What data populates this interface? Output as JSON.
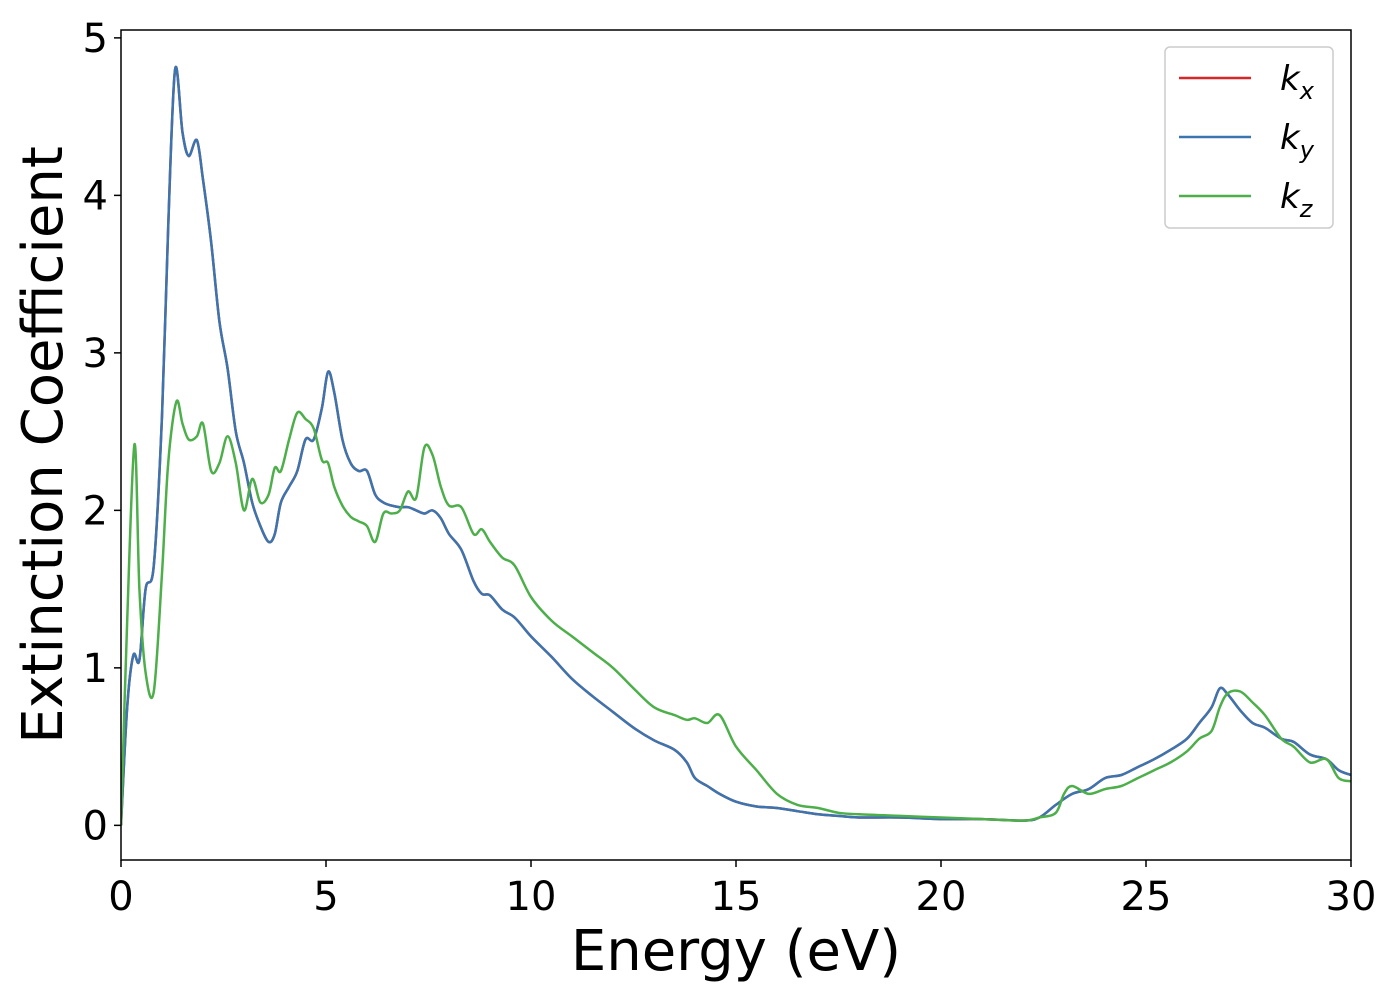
{
  "chart_data": {
    "type": "line",
    "title": "",
    "xlabel": "Energy (eV)",
    "ylabel": "Extinction Coefficient",
    "xlim": [
      0,
      30
    ],
    "ylim": [
      -0.22,
      5.05
    ],
    "xticks": [
      0,
      5,
      10,
      15,
      20,
      25,
      30
    ],
    "yticks": [
      0,
      1,
      2,
      3,
      4,
      5
    ],
    "grid": false,
    "legend_position": "top-right",
    "series": [
      {
        "name": "k_x",
        "legend_base": "k",
        "legend_sub": "x",
        "color": "#d62728",
        "x": [
          0,
          0.15,
          0.3,
          0.45,
          0.6,
          0.8,
          1.0,
          1.15,
          1.32,
          1.5,
          1.65,
          1.85,
          2.0,
          2.2,
          2.4,
          2.6,
          2.8,
          3.0,
          3.2,
          3.4,
          3.6,
          3.75,
          3.9,
          4.1,
          4.3,
          4.5,
          4.7,
          4.9,
          5.05,
          5.2,
          5.4,
          5.6,
          5.8,
          6.0,
          6.2,
          6.4,
          6.6,
          6.8,
          7.0,
          7.2,
          7.4,
          7.6,
          7.8,
          8.0,
          8.3,
          8.6,
          8.8,
          9.0,
          9.3,
          9.6,
          10.0,
          10.5,
          11.0,
          11.5,
          12.0,
          12.5,
          13.0,
          13.5,
          13.8,
          14.0,
          14.3,
          14.6,
          15.0,
          15.5,
          16.0,
          16.5,
          17.0,
          17.5,
          18.0,
          19.0,
          20.0,
          21.0,
          22.0,
          22.4,
          22.8,
          23.2,
          23.6,
          24.0,
          24.4,
          24.8,
          25.2,
          25.6,
          26.0,
          26.3,
          26.6,
          26.8,
          27.0,
          27.3,
          27.6,
          27.9,
          28.3,
          28.6,
          29.0,
          29.4,
          29.7,
          30.0
        ],
        "y": [
          0.0,
          0.75,
          1.08,
          1.05,
          1.5,
          1.65,
          2.6,
          3.8,
          4.8,
          4.4,
          4.25,
          4.35,
          4.1,
          3.7,
          3.2,
          2.9,
          2.5,
          2.3,
          2.05,
          1.9,
          1.8,
          1.85,
          2.05,
          2.15,
          2.25,
          2.45,
          2.45,
          2.65,
          2.88,
          2.75,
          2.45,
          2.3,
          2.25,
          2.25,
          2.1,
          2.05,
          2.03,
          2.02,
          2.02,
          2.0,
          1.98,
          2.0,
          1.95,
          1.85,
          1.75,
          1.55,
          1.47,
          1.46,
          1.37,
          1.32,
          1.2,
          1.07,
          0.93,
          0.82,
          0.72,
          0.62,
          0.54,
          0.48,
          0.4,
          0.3,
          0.25,
          0.2,
          0.15,
          0.12,
          0.11,
          0.09,
          0.07,
          0.06,
          0.05,
          0.05,
          0.04,
          0.04,
          0.03,
          0.05,
          0.13,
          0.2,
          0.23,
          0.3,
          0.32,
          0.37,
          0.42,
          0.48,
          0.55,
          0.65,
          0.75,
          0.87,
          0.83,
          0.73,
          0.65,
          0.62,
          0.55,
          0.53,
          0.45,
          0.42,
          0.35,
          0.32
        ]
      },
      {
        "name": "k_y",
        "legend_base": "k",
        "legend_sub": "y",
        "color": "#3b75af",
        "x": [
          0,
          0.15,
          0.3,
          0.45,
          0.6,
          0.8,
          1.0,
          1.15,
          1.32,
          1.5,
          1.65,
          1.85,
          2.0,
          2.2,
          2.4,
          2.6,
          2.8,
          3.0,
          3.2,
          3.4,
          3.6,
          3.75,
          3.9,
          4.1,
          4.3,
          4.5,
          4.7,
          4.9,
          5.05,
          5.2,
          5.4,
          5.6,
          5.8,
          6.0,
          6.2,
          6.4,
          6.6,
          6.8,
          7.0,
          7.2,
          7.4,
          7.6,
          7.8,
          8.0,
          8.3,
          8.6,
          8.8,
          9.0,
          9.3,
          9.6,
          10.0,
          10.5,
          11.0,
          11.5,
          12.0,
          12.5,
          13.0,
          13.5,
          13.8,
          14.0,
          14.3,
          14.6,
          15.0,
          15.5,
          16.0,
          16.5,
          17.0,
          17.5,
          18.0,
          19.0,
          20.0,
          21.0,
          22.0,
          22.4,
          22.8,
          23.2,
          23.6,
          24.0,
          24.4,
          24.8,
          25.2,
          25.6,
          26.0,
          26.3,
          26.6,
          26.8,
          27.0,
          27.3,
          27.6,
          27.9,
          28.3,
          28.6,
          29.0,
          29.4,
          29.7,
          30.0
        ],
        "y": [
          0.0,
          0.75,
          1.08,
          1.05,
          1.5,
          1.65,
          2.6,
          3.8,
          4.8,
          4.4,
          4.25,
          4.35,
          4.1,
          3.7,
          3.2,
          2.9,
          2.5,
          2.3,
          2.05,
          1.9,
          1.8,
          1.85,
          2.05,
          2.15,
          2.25,
          2.45,
          2.45,
          2.65,
          2.88,
          2.75,
          2.45,
          2.3,
          2.25,
          2.25,
          2.1,
          2.05,
          2.03,
          2.02,
          2.02,
          2.0,
          1.98,
          2.0,
          1.95,
          1.85,
          1.75,
          1.55,
          1.47,
          1.46,
          1.37,
          1.32,
          1.2,
          1.07,
          0.93,
          0.82,
          0.72,
          0.62,
          0.54,
          0.48,
          0.4,
          0.3,
          0.25,
          0.2,
          0.15,
          0.12,
          0.11,
          0.09,
          0.07,
          0.06,
          0.05,
          0.05,
          0.04,
          0.04,
          0.03,
          0.05,
          0.13,
          0.2,
          0.23,
          0.3,
          0.32,
          0.37,
          0.42,
          0.48,
          0.55,
          0.65,
          0.75,
          0.87,
          0.83,
          0.73,
          0.65,
          0.62,
          0.55,
          0.53,
          0.45,
          0.42,
          0.35,
          0.32
        ]
      },
      {
        "name": "k_z",
        "legend_base": "k",
        "legend_sub": "z",
        "color": "#4daf4a",
        "x": [
          0,
          0.15,
          0.33,
          0.45,
          0.6,
          0.8,
          1.0,
          1.15,
          1.35,
          1.5,
          1.65,
          1.85,
          2.0,
          2.2,
          2.4,
          2.6,
          2.8,
          3.0,
          3.2,
          3.4,
          3.6,
          3.75,
          3.9,
          4.1,
          4.3,
          4.5,
          4.7,
          4.9,
          5.05,
          5.2,
          5.4,
          5.6,
          5.8,
          6.0,
          6.2,
          6.4,
          6.6,
          6.8,
          7.0,
          7.2,
          7.4,
          7.6,
          7.8,
          8.0,
          8.3,
          8.6,
          8.8,
          9.0,
          9.3,
          9.6,
          10.0,
          10.5,
          11.0,
          11.5,
          12.0,
          12.5,
          13.0,
          13.5,
          13.8,
          14.0,
          14.3,
          14.6,
          15.0,
          15.5,
          16.0,
          16.5,
          17.0,
          17.5,
          18.0,
          19.0,
          20.0,
          21.0,
          22.0,
          22.4,
          22.8,
          23.0,
          23.2,
          23.6,
          24.0,
          24.4,
          24.8,
          25.2,
          25.6,
          26.0,
          26.3,
          26.6,
          26.8,
          27.0,
          27.3,
          27.6,
          27.9,
          28.3,
          28.6,
          29.0,
          29.4,
          29.7,
          30.0
        ],
        "y": [
          0.0,
          1.3,
          2.42,
          1.5,
          0.97,
          0.85,
          1.6,
          2.3,
          2.69,
          2.55,
          2.45,
          2.47,
          2.55,
          2.25,
          2.3,
          2.47,
          2.3,
          2.0,
          2.2,
          2.05,
          2.1,
          2.27,
          2.25,
          2.45,
          2.62,
          2.58,
          2.52,
          2.32,
          2.3,
          2.15,
          2.03,
          1.96,
          1.93,
          1.9,
          1.8,
          1.98,
          1.98,
          2.0,
          2.12,
          2.08,
          2.4,
          2.35,
          2.15,
          2.03,
          2.02,
          1.85,
          1.88,
          1.8,
          1.7,
          1.65,
          1.45,
          1.3,
          1.2,
          1.1,
          1.0,
          0.87,
          0.75,
          0.7,
          0.67,
          0.68,
          0.65,
          0.7,
          0.5,
          0.35,
          0.2,
          0.13,
          0.11,
          0.08,
          0.07,
          0.06,
          0.05,
          0.04,
          0.03,
          0.05,
          0.08,
          0.2,
          0.25,
          0.2,
          0.23,
          0.25,
          0.3,
          0.35,
          0.4,
          0.47,
          0.55,
          0.6,
          0.75,
          0.84,
          0.85,
          0.78,
          0.7,
          0.55,
          0.5,
          0.4,
          0.42,
          0.3,
          0.28
        ]
      }
    ]
  }
}
